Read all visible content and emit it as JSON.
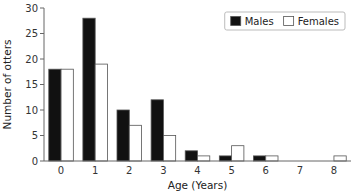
{
  "chart_data": {
    "type": "bar",
    "categories": [
      0,
      1,
      2,
      3,
      4,
      5,
      6,
      7,
      8
    ],
    "series": [
      {
        "name": "Males",
        "color": "#111111",
        "values": [
          18,
          28,
          10,
          12,
          2,
          1,
          1,
          0,
          0
        ]
      },
      {
        "name": "Females",
        "color": "#ffffff",
        "values": [
          18,
          19,
          7,
          5,
          1,
          3,
          1,
          0,
          1
        ]
      }
    ],
    "xlabel": "Age (Years)",
    "ylabel": "Number of otters",
    "ylim": [
      0,
      30
    ],
    "yticks": [
      0,
      5,
      10,
      15,
      20,
      25,
      30
    ],
    "grid": false,
    "legend": "upper right"
  }
}
